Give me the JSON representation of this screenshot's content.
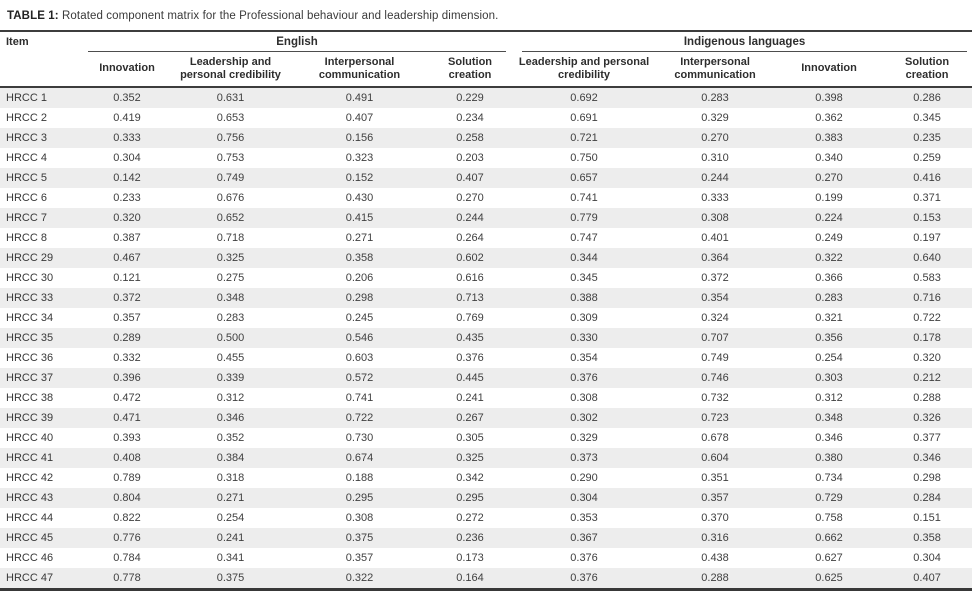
{
  "title": {
    "label": "TABLE 1:",
    "text": "Rotated component matrix for the Professional behaviour and leadership dimension."
  },
  "colors": {
    "rule_dark": "#3d3d3d",
    "rule_group": "#4d4d4d",
    "row_stripe": "#ededed",
    "text": "#404040"
  },
  "table": {
    "item_header": "Item",
    "groups": [
      {
        "label": "English",
        "columns": [
          "Innovation",
          "Leadership and personal credibility",
          "Interpersonal communication",
          "Solution creation"
        ]
      },
      {
        "label": "Indigenous languages",
        "columns": [
          "Leadership and personal credibility",
          "Interpersonal communication",
          "Innovation",
          "Solution creation"
        ]
      }
    ],
    "rows": [
      {
        "item": "HRCC 1",
        "values": [
          "0.352",
          "0.631",
          "0.491",
          "0.229",
          "0.692",
          "0.283",
          "0.398",
          "0.286"
        ]
      },
      {
        "item": "HRCC 2",
        "values": [
          "0.419",
          "0.653",
          "0.407",
          "0.234",
          "0.691",
          "0.329",
          "0.362",
          "0.345"
        ]
      },
      {
        "item": "HRCC 3",
        "values": [
          "0.333",
          "0.756",
          "0.156",
          "0.258",
          "0.721",
          "0.270",
          "0.383",
          "0.235"
        ]
      },
      {
        "item": "HRCC 4",
        "values": [
          "0.304",
          "0.753",
          "0.323",
          "0.203",
          "0.750",
          "0.310",
          "0.340",
          "0.259"
        ]
      },
      {
        "item": "HRCC 5",
        "values": [
          "0.142",
          "0.749",
          "0.152",
          "0.407",
          "0.657",
          "0.244",
          "0.270",
          "0.416"
        ]
      },
      {
        "item": "HRCC 6",
        "values": [
          "0.233",
          "0.676",
          "0.430",
          "0.270",
          "0.741",
          "0.333",
          "0.199",
          "0.371"
        ]
      },
      {
        "item": "HRCC 7",
        "values": [
          "0.320",
          "0.652",
          "0.415",
          "0.244",
          "0.779",
          "0.308",
          "0.224",
          "0.153"
        ]
      },
      {
        "item": "HRCC 8",
        "values": [
          "0.387",
          "0.718",
          "0.271",
          "0.264",
          "0.747",
          "0.401",
          "0.249",
          "0.197"
        ]
      },
      {
        "item": "HRCC 29",
        "values": [
          "0.467",
          "0.325",
          "0.358",
          "0.602",
          "0.344",
          "0.364",
          "0.322",
          "0.640"
        ]
      },
      {
        "item": "HRCC 30",
        "values": [
          "0.121",
          "0.275",
          "0.206",
          "0.616",
          "0.345",
          "0.372",
          "0.366",
          "0.583"
        ]
      },
      {
        "item": "HRCC 33",
        "values": [
          "0.372",
          "0.348",
          "0.298",
          "0.713",
          "0.388",
          "0.354",
          "0.283",
          "0.716"
        ]
      },
      {
        "item": "HRCC 34",
        "values": [
          "0.357",
          "0.283",
          "0.245",
          "0.769",
          "0.309",
          "0.324",
          "0.321",
          "0.722"
        ]
      },
      {
        "item": "HRCC 35",
        "values": [
          "0.289",
          "0.500",
          "0.546",
          "0.435",
          "0.330",
          "0.707",
          "0.356",
          "0.178"
        ]
      },
      {
        "item": "HRCC 36",
        "values": [
          "0.332",
          "0.455",
          "0.603",
          "0.376",
          "0.354",
          "0.749",
          "0.254",
          "0.320"
        ]
      },
      {
        "item": "HRCC 37",
        "values": [
          "0.396",
          "0.339",
          "0.572",
          "0.445",
          "0.376",
          "0.746",
          "0.303",
          "0.212"
        ]
      },
      {
        "item": "HRCC 38",
        "values": [
          "0.472",
          "0.312",
          "0.741",
          "0.241",
          "0.308",
          "0.732",
          "0.312",
          "0.288"
        ]
      },
      {
        "item": "HRCC 39",
        "values": [
          "0.471",
          "0.346",
          "0.722",
          "0.267",
          "0.302",
          "0.723",
          "0.348",
          "0.326"
        ]
      },
      {
        "item": "HRCC 40",
        "values": [
          "0.393",
          "0.352",
          "0.730",
          "0.305",
          "0.329",
          "0.678",
          "0.346",
          "0.377"
        ]
      },
      {
        "item": "HRCC 41",
        "values": [
          "0.408",
          "0.384",
          "0.674",
          "0.325",
          "0.373",
          "0.604",
          "0.380",
          "0.346"
        ]
      },
      {
        "item": "HRCC 42",
        "values": [
          "0.789",
          "0.318",
          "0.188",
          "0.342",
          "0.290",
          "0.351",
          "0.734",
          "0.298"
        ]
      },
      {
        "item": "HRCC 43",
        "values": [
          "0.804",
          "0.271",
          "0.295",
          "0.295",
          "0.304",
          "0.357",
          "0.729",
          "0.284"
        ]
      },
      {
        "item": "HRCC 44",
        "values": [
          "0.822",
          "0.254",
          "0.308",
          "0.272",
          "0.353",
          "0.370",
          "0.758",
          "0.151"
        ]
      },
      {
        "item": "HRCC 45",
        "values": [
          "0.776",
          "0.241",
          "0.375",
          "0.236",
          "0.367",
          "0.316",
          "0.662",
          "0.358"
        ]
      },
      {
        "item": "HRCC 46",
        "values": [
          "0.784",
          "0.341",
          "0.357",
          "0.173",
          "0.376",
          "0.438",
          "0.627",
          "0.304"
        ]
      },
      {
        "item": "HRCC 47",
        "values": [
          "0.778",
          "0.375",
          "0.322",
          "0.164",
          "0.376",
          "0.288",
          "0.625",
          "0.407"
        ]
      }
    ]
  }
}
